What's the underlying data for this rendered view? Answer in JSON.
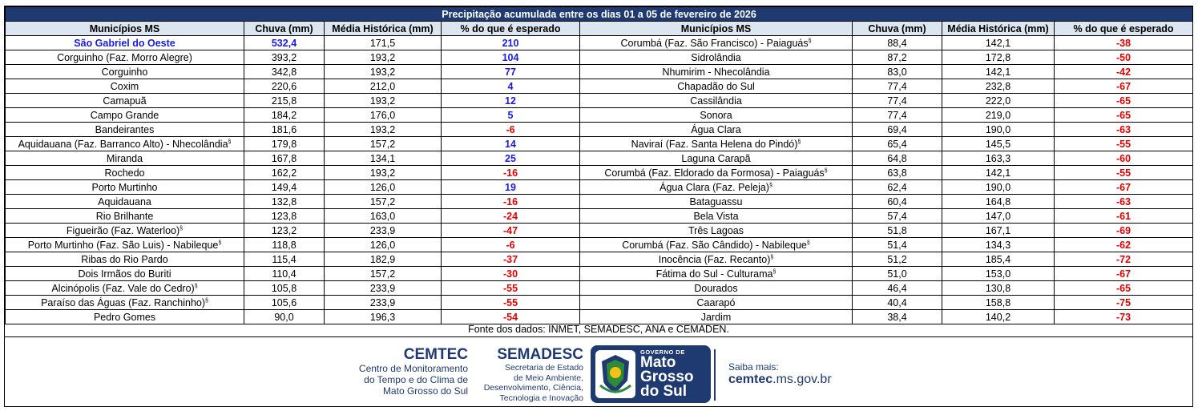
{
  "title": "Precipitação acumulada entre os dias 01 a 05 de fevereiro de 2026",
  "headers": [
    "Municípios MS",
    "Chuva (mm)",
    "Média Histórica (mm)",
    "% do que é esperado"
  ],
  "left_rows": [
    {
      "municipio": "São Gabriel do Oeste",
      "chuva": "532,4",
      "media": "171,5",
      "pct": "210",
      "highlight": true
    },
    {
      "municipio": "Corguinho (Faz. Morro Alegre)",
      "chuva": "393,2",
      "media": "193,2",
      "pct": "104"
    },
    {
      "municipio": "Corguinho",
      "chuva": "342,8",
      "media": "193,2",
      "pct": "77"
    },
    {
      "municipio": "Coxim",
      "chuva": "220,6",
      "media": "212,0",
      "pct": "4"
    },
    {
      "municipio": "Camapuã",
      "chuva": "215,8",
      "media": "193,2",
      "pct": "12"
    },
    {
      "municipio": "Campo Grande",
      "chuva": "184,2",
      "media": "176,0",
      "pct": "5"
    },
    {
      "municipio": "Bandeirantes",
      "chuva": "181,6",
      "media": "193,2",
      "pct": "-6"
    },
    {
      "municipio": "Aquidauana (Faz. Barranco Alto) - Nhecolândia",
      "chuva": "179,8",
      "media": "157,2",
      "pct": "14",
      "note": "§"
    },
    {
      "municipio": "Miranda",
      "chuva": "167,8",
      "media": "134,1",
      "pct": "25"
    },
    {
      "municipio": "Rochedo",
      "chuva": "162,2",
      "media": "193,2",
      "pct": "-16"
    },
    {
      "municipio": "Porto Murtinho",
      "chuva": "149,4",
      "media": "126,0",
      "pct": "19"
    },
    {
      "municipio": "Aquidauana",
      "chuva": "132,8",
      "media": "157,2",
      "pct": "-16"
    },
    {
      "municipio": "Rio Brilhante",
      "chuva": "123,8",
      "media": "163,0",
      "pct": "-24"
    },
    {
      "municipio": "Figueirão (Faz. Waterloo)",
      "chuva": "123,2",
      "media": "233,9",
      "pct": "-47",
      "note": "§"
    },
    {
      "municipio": "Porto Murtinho (Faz. São Luis) - Nabileque",
      "chuva": "118,8",
      "media": "126,0",
      "pct": "-6",
      "note": "§"
    },
    {
      "municipio": "Ribas do Rio Pardo",
      "chuva": "115,4",
      "media": "182,9",
      "pct": "-37"
    },
    {
      "municipio": "Dois Irmãos do Buriti",
      "chuva": "110,4",
      "media": "157,2",
      "pct": "-30"
    },
    {
      "municipio": "Alcinópolis (Faz. Vale do Cedro)",
      "chuva": "105,8",
      "media": "233,9",
      "pct": "-55",
      "note": "§"
    },
    {
      "municipio": "Paraíso das Águas (Faz. Ranchinho)",
      "chuva": "105,6",
      "media": "233,9",
      "pct": "-55",
      "note": "§"
    },
    {
      "municipio": "Pedro Gomes",
      "chuva": "90,0",
      "media": "196,3",
      "pct": "-54"
    }
  ],
  "right_rows": [
    {
      "municipio": "Corumbá (Faz. São Francisco) - Paiaguás",
      "chuva": "88,4",
      "media": "142,1",
      "pct": "-38",
      "note": "§"
    },
    {
      "municipio": "Sidrolândia",
      "chuva": "87,2",
      "media": "172,8",
      "pct": "-50"
    },
    {
      "municipio": "Nhumirim - Nhecolândia",
      "chuva": "83,0",
      "media": "142,1",
      "pct": "-42"
    },
    {
      "municipio": "Chapadão do Sul",
      "chuva": "77,4",
      "media": "232,8",
      "pct": "-67"
    },
    {
      "municipio": "Cassilândia",
      "chuva": "77,4",
      "media": "222,0",
      "pct": "-65"
    },
    {
      "municipio": "Sonora",
      "chuva": "77,4",
      "media": "219,0",
      "pct": "-65"
    },
    {
      "municipio": "Água Clara",
      "chuva": "69,4",
      "media": "190,0",
      "pct": "-63"
    },
    {
      "municipio": "Naviraí (Faz. Santa Helena do Pindó)",
      "chuva": "65,4",
      "media": "145,5",
      "pct": "-55",
      "note": "§"
    },
    {
      "municipio": "Laguna Carapã",
      "chuva": "64,8",
      "media": "163,3",
      "pct": "-60"
    },
    {
      "municipio": "Corumbá (Faz. Eldorado da Formosa) - Paiaguás",
      "chuva": "63,8",
      "media": "142,1",
      "pct": "-55",
      "note": "§"
    },
    {
      "municipio": "Água Clara (Faz. Peleja)",
      "chuva": "62,4",
      "media": "190,0",
      "pct": "-67",
      "note": "§"
    },
    {
      "municipio": "Bataguassu",
      "chuva": "60,4",
      "media": "164,8",
      "pct": "-63"
    },
    {
      "municipio": "Bela Vista",
      "chuva": "57,4",
      "media": "147,0",
      "pct": "-61"
    },
    {
      "municipio": "Três Lagoas",
      "chuva": "51,8",
      "media": "167,1",
      "pct": "-69"
    },
    {
      "municipio": "Corumbá (Faz. São Cândido) - Nabileque",
      "chuva": "51,4",
      "media": "134,3",
      "pct": "-62",
      "note": "§"
    },
    {
      "municipio": "Inocência (Faz. Recanto)",
      "chuva": "51,2",
      "media": "185,4",
      "pct": "-72",
      "note": "§"
    },
    {
      "municipio": "Fátima do Sul - Culturama",
      "chuva": "51,0",
      "media": "153,0",
      "pct": "-67",
      "note": "§"
    },
    {
      "municipio": "Dourados",
      "chuva": "46,4",
      "media": "130,8",
      "pct": "-65"
    },
    {
      "municipio": "Caarapó",
      "chuva": "40,4",
      "media": "158,8",
      "pct": "-75"
    },
    {
      "municipio": "Jardim",
      "chuva": "38,4",
      "media": "140,2",
      "pct": "-73"
    }
  ],
  "source": "Fonte dos dados: INMET, SEMADESC, ANA e CEMADEN.",
  "footer": {
    "cemtec_name": "CEMTEC",
    "cemtec_lines": [
      "Centro de Monitoramento",
      "do Tempo e do Clima de",
      "Mato Grosso do Sul"
    ],
    "semadesc_name": "SEMADESC",
    "semadesc_lines": [
      "Secretaria de Estado",
      "de Meio Ambiente,",
      "Desenvolvimento, Ciência,",
      "Tecnologia e Inovação"
    ],
    "gov_small": "GOVERNO DE",
    "gov_lines": [
      "Mato",
      "Grosso",
      "do Sul"
    ],
    "saiba": "Saiba mais:",
    "site_bold": "cemtec",
    "site_rest": ".ms.gov.br"
  },
  "colors": {
    "positive": "#1a1ae6",
    "negative": "#e60000",
    "title_bg": "#1f3a70",
    "header_bg": "#dce6f1"
  }
}
